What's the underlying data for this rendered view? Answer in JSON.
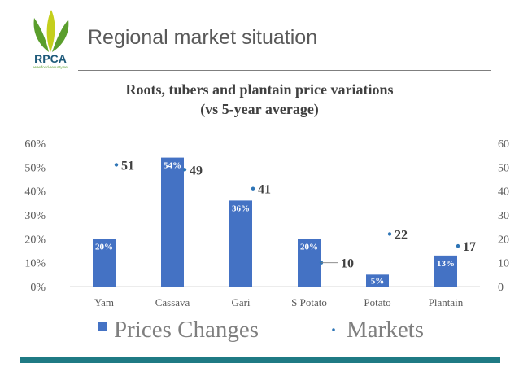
{
  "header": {
    "title": "Regional market situation"
  },
  "logo": {
    "text": "RPCA",
    "subtext": "www.food-security.net",
    "colors": {
      "leaf_green": "#5a9e2c",
      "leaf_yellow": "#c4cf1c",
      "text": "#1e5a7a"
    }
  },
  "colors": {
    "bars": "#4472c4",
    "markers": "#2e75b6",
    "accent_bar": "#1f7a84"
  },
  "chart_data": {
    "type": "bar",
    "title": "Roots, tubers and plantain price variations",
    "subtitle": "(vs 5-year average)",
    "categories": [
      "Yam",
      "Cassava",
      "Gari",
      "S Potato",
      "Potato",
      "Plantain"
    ],
    "series": [
      {
        "name": "Prices Changes",
        "type": "bar",
        "axis": "left",
        "values": [
          20,
          54,
          36,
          20,
          5,
          13
        ],
        "labels": [
          "20%",
          "54%",
          "36%",
          "20%",
          "5%",
          "13%"
        ]
      },
      {
        "name": "Markets",
        "type": "scatter",
        "axis": "right",
        "values": [
          51,
          49,
          41,
          10,
          22,
          17
        ],
        "labels": [
          "51",
          "49",
          "41",
          "10",
          "22",
          "17"
        ]
      }
    ],
    "left_axis": {
      "ylim": [
        0,
        60
      ],
      "ticks": [
        "0%",
        "10%",
        "20%",
        "30%",
        "40%",
        "50%",
        "60%"
      ]
    },
    "right_axis": {
      "ylim": [
        0,
        60
      ],
      "ticks": [
        "0",
        "10",
        "20",
        "30",
        "40",
        "50",
        "60"
      ]
    },
    "grid": false,
    "legend_position": "bottom"
  }
}
